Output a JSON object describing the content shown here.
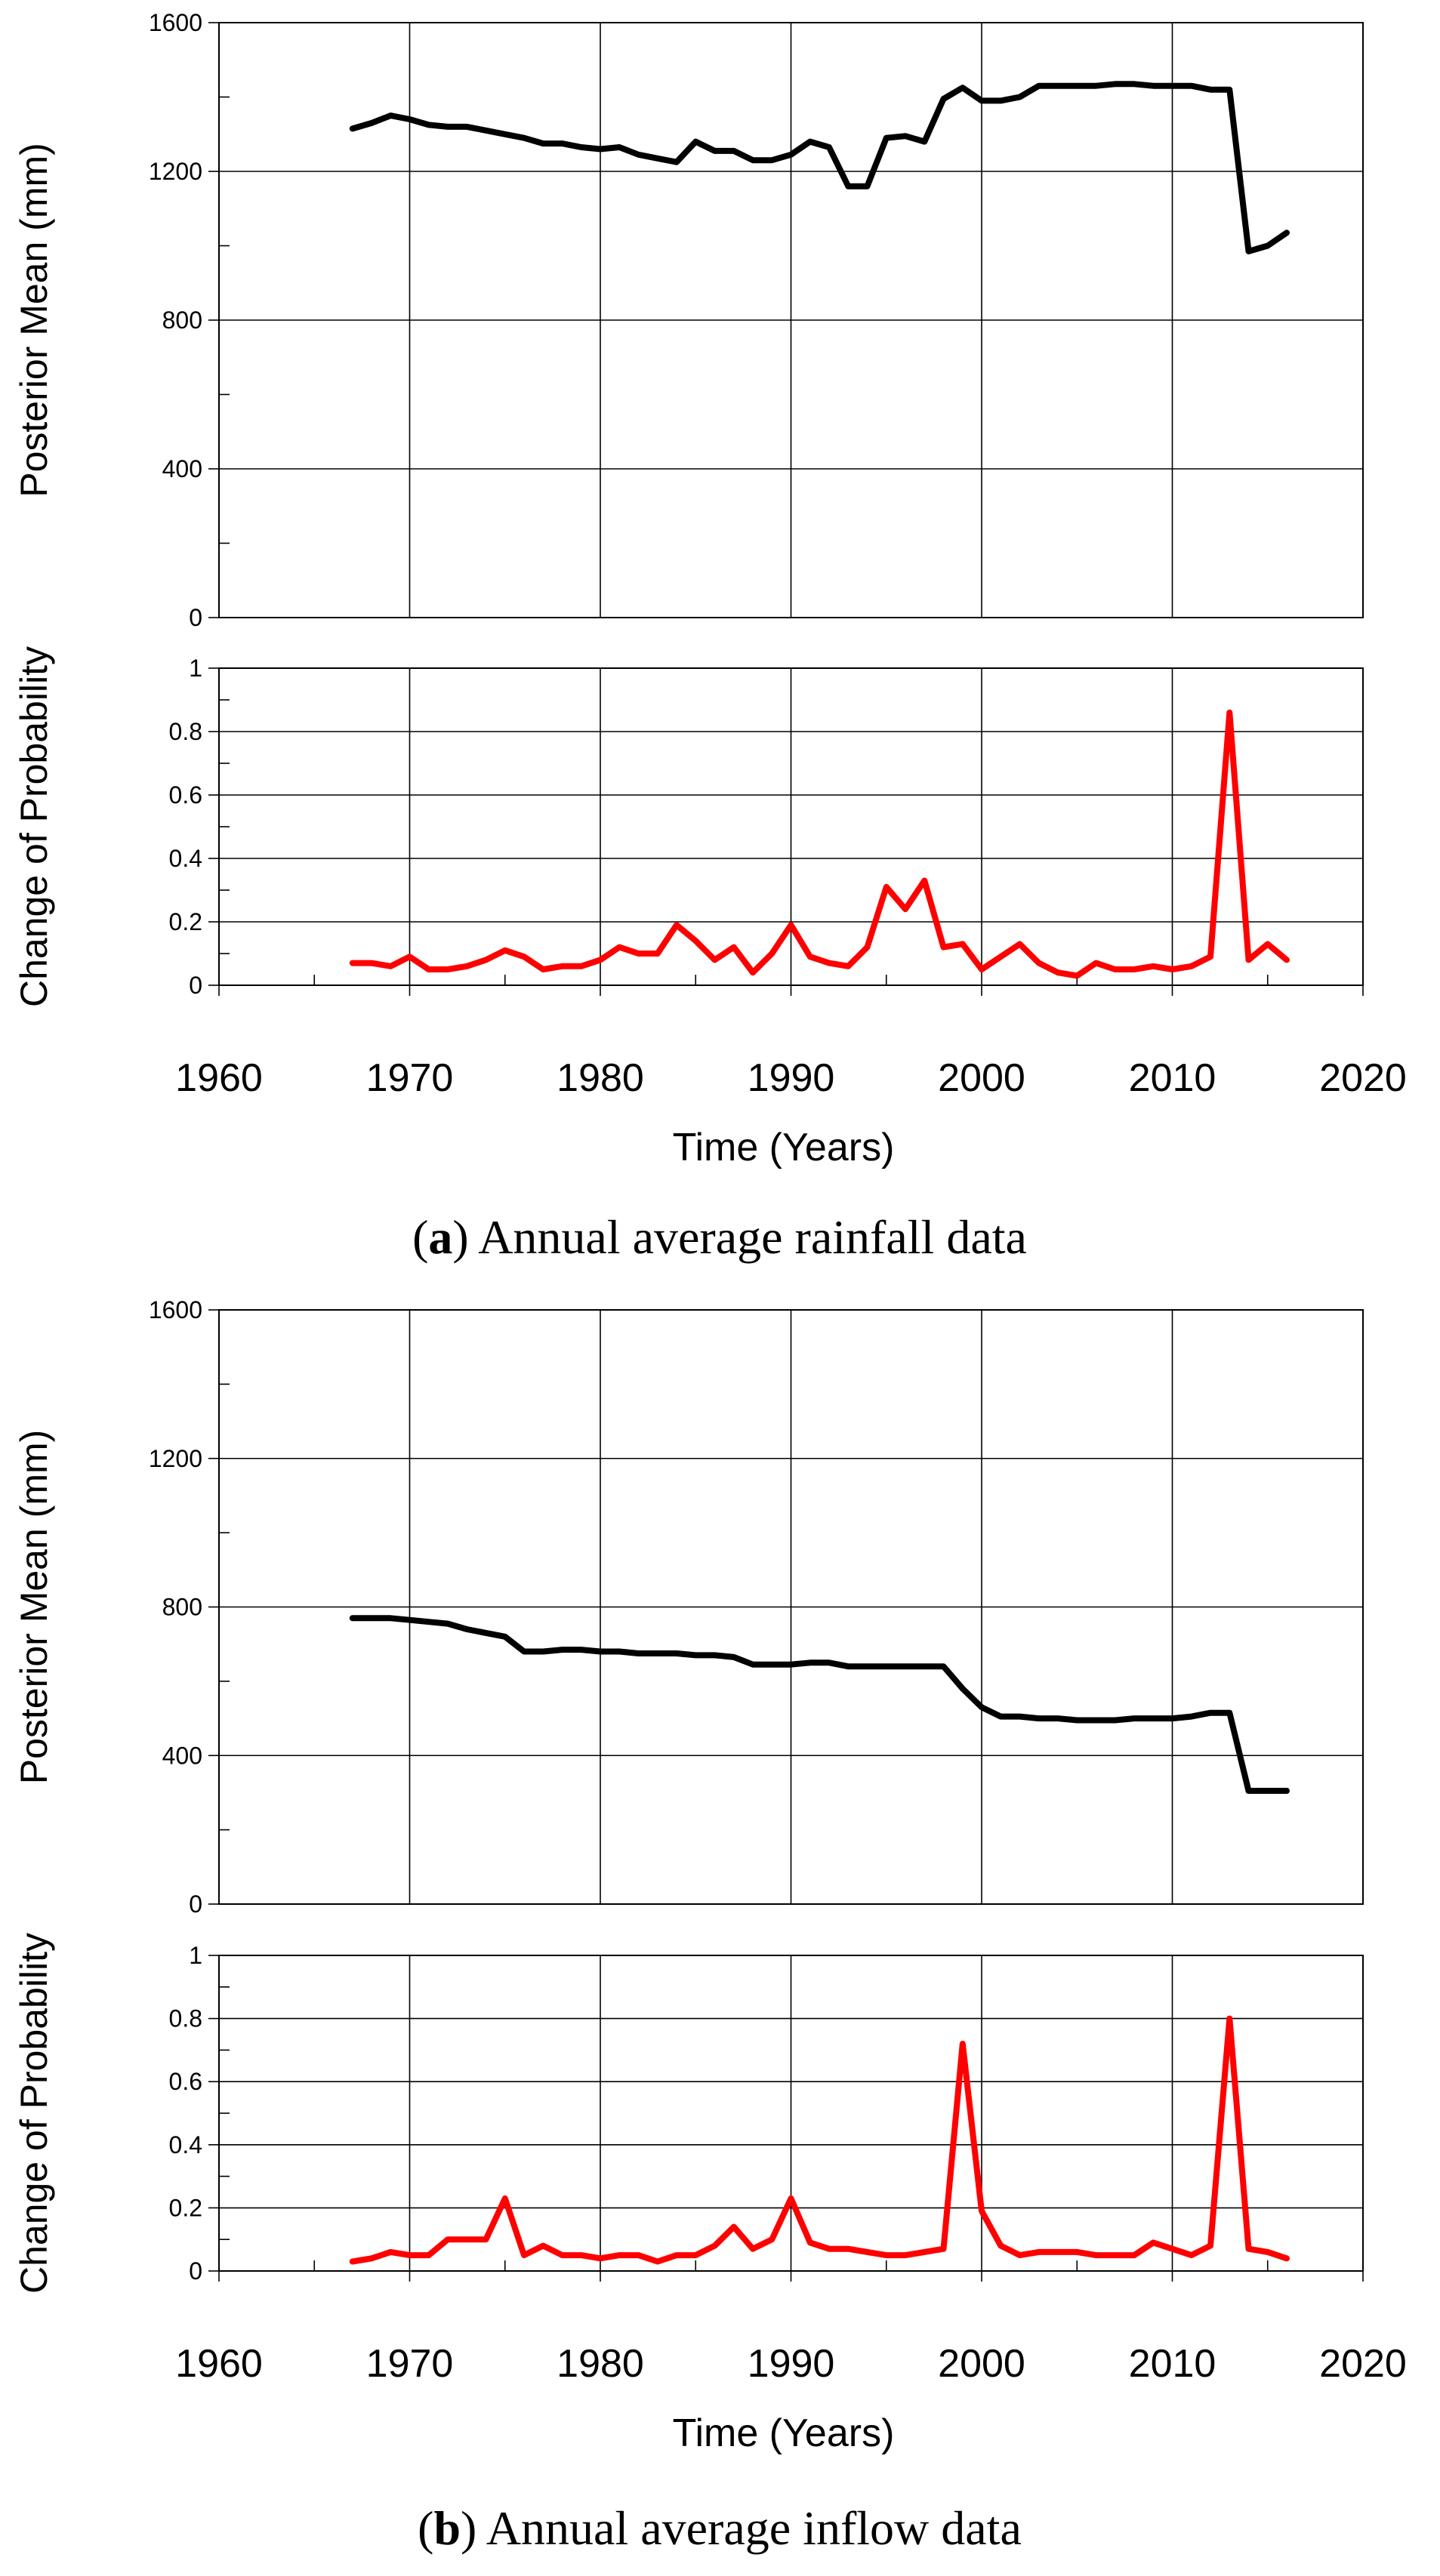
{
  "chart_data": [
    {
      "panel": "a",
      "caption_letter": "a",
      "caption_text": ") Annual average rainfall data",
      "xlabel": "Time (Years)",
      "x_ticks": [
        1960,
        1970,
        1980,
        1990,
        2000,
        2010,
        2020
      ],
      "xlim": [
        1960,
        2020
      ],
      "subplots": [
        {
          "type": "line",
          "ylabel": "Posterior Mean (mm)",
          "ylim": [
            0,
            1600
          ],
          "y_ticks": [
            0,
            400,
            800,
            1200,
            1600
          ],
          "color": "#000000",
          "x": [
            1967,
            1968,
            1969,
            1970,
            1971,
            1972,
            1973,
            1974,
            1975,
            1976,
            1977,
            1978,
            1979,
            1980,
            1981,
            1982,
            1983,
            1984,
            1985,
            1986,
            1987,
            1988,
            1989,
            1990,
            1991,
            1992,
            1993,
            1994,
            1995,
            1996,
            1997,
            1998,
            1999,
            2000,
            2001,
            2002,
            2003,
            2004,
            2005,
            2006,
            2007,
            2008,
            2009,
            2010,
            2011,
            2012,
            2013,
            2014,
            2015,
            2016
          ],
          "values": [
            1315,
            1330,
            1350,
            1340,
            1325,
            1320,
            1320,
            1310,
            1300,
            1290,
            1275,
            1275,
            1265,
            1260,
            1265,
            1245,
            1235,
            1225,
            1280,
            1255,
            1255,
            1230,
            1230,
            1245,
            1280,
            1265,
            1160,
            1160,
            1290,
            1295,
            1280,
            1395,
            1425,
            1390,
            1390,
            1400,
            1430,
            1430,
            1430,
            1430,
            1435,
            1435,
            1430,
            1430,
            1430,
            1420,
            1420,
            985,
            1000,
            1035
          ]
        },
        {
          "type": "line",
          "ylabel": "Change of Probability",
          "ylim": [
            0,
            1
          ],
          "y_ticks": [
            0,
            0.2,
            0.4,
            0.6,
            0.8,
            1
          ],
          "y_tick_labels": [
            "0",
            "0.2",
            "0.4",
            "0.6",
            "0.8",
            "1"
          ],
          "color": "#ff0000",
          "x": [
            1967,
            1968,
            1969,
            1970,
            1971,
            1972,
            1973,
            1974,
            1975,
            1976,
            1977,
            1978,
            1979,
            1980,
            1981,
            1982,
            1983,
            1984,
            1985,
            1986,
            1987,
            1988,
            1989,
            1990,
            1991,
            1992,
            1993,
            1994,
            1995,
            1996,
            1997,
            1998,
            1999,
            2000,
            2001,
            2002,
            2003,
            2004,
            2005,
            2006,
            2007,
            2008,
            2009,
            2010,
            2011,
            2012,
            2013,
            2014,
            2015,
            2016
          ],
          "values": [
            0.07,
            0.07,
            0.06,
            0.09,
            0.05,
            0.05,
            0.06,
            0.08,
            0.11,
            0.09,
            0.05,
            0.06,
            0.06,
            0.08,
            0.12,
            0.1,
            0.1,
            0.19,
            0.14,
            0.08,
            0.12,
            0.04,
            0.1,
            0.19,
            0.09,
            0.07,
            0.06,
            0.12,
            0.31,
            0.24,
            0.33,
            0.12,
            0.13,
            0.05,
            0.09,
            0.13,
            0.07,
            0.04,
            0.03,
            0.07,
            0.05,
            0.05,
            0.06,
            0.05,
            0.06,
            0.09,
            0.86,
            0.08,
            0.13,
            0.08
          ]
        }
      ]
    },
    {
      "panel": "b",
      "caption_letter": "b",
      "caption_text": ") Annual average inflow data",
      "xlabel": "Time (Years)",
      "x_ticks": [
        1960,
        1970,
        1980,
        1990,
        2000,
        2010,
        2020
      ],
      "xlim": [
        1960,
        2020
      ],
      "subplots": [
        {
          "type": "line",
          "ylabel": "Posterior Mean (mm)",
          "ylim": [
            0,
            1600
          ],
          "y_ticks": [
            0,
            400,
            800,
            1200,
            1600
          ],
          "color": "#000000",
          "x": [
            1967,
            1968,
            1969,
            1970,
            1971,
            1972,
            1973,
            1974,
            1975,
            1976,
            1977,
            1978,
            1979,
            1980,
            1981,
            1982,
            1983,
            1984,
            1985,
            1986,
            1987,
            1988,
            1989,
            1990,
            1991,
            1992,
            1993,
            1994,
            1995,
            1996,
            1997,
            1998,
            1999,
            2000,
            2001,
            2002,
            2003,
            2004,
            2005,
            2006,
            2007,
            2008,
            2009,
            2010,
            2011,
            2012,
            2013,
            2014,
            2015,
            2016
          ],
          "values": [
            770,
            770,
            770,
            765,
            760,
            755,
            740,
            730,
            720,
            680,
            680,
            685,
            685,
            680,
            680,
            675,
            675,
            675,
            670,
            670,
            665,
            645,
            645,
            645,
            650,
            650,
            640,
            640,
            640,
            640,
            640,
            640,
            580,
            530,
            505,
            505,
            500,
            500,
            495,
            495,
            495,
            500,
            500,
            500,
            505,
            515,
            515,
            305,
            305,
            305
          ]
        },
        {
          "type": "line",
          "ylabel": "Change of Probability",
          "ylim": [
            0,
            1
          ],
          "y_ticks": [
            0,
            0.2,
            0.4,
            0.6,
            0.8,
            1
          ],
          "y_tick_labels": [
            "0",
            "0.2",
            "0.4",
            "0.6",
            "0.8",
            "1"
          ],
          "color": "#ff0000",
          "x": [
            1967,
            1968,
            1969,
            1970,
            1971,
            1972,
            1973,
            1974,
            1975,
            1976,
            1977,
            1978,
            1979,
            1980,
            1981,
            1982,
            1983,
            1984,
            1985,
            1986,
            1987,
            1988,
            1989,
            1990,
            1991,
            1992,
            1993,
            1994,
            1995,
            1996,
            1997,
            1998,
            1999,
            2000,
            2001,
            2002,
            2003,
            2004,
            2005,
            2006,
            2007,
            2008,
            2009,
            2010,
            2011,
            2012,
            2013,
            2014,
            2015,
            2016
          ],
          "values": [
            0.03,
            0.04,
            0.06,
            0.05,
            0.05,
            0.1,
            0.1,
            0.1,
            0.23,
            0.05,
            0.08,
            0.05,
            0.05,
            0.04,
            0.05,
            0.05,
            0.03,
            0.05,
            0.05,
            0.08,
            0.14,
            0.07,
            0.1,
            0.23,
            0.09,
            0.07,
            0.07,
            0.06,
            0.05,
            0.05,
            0.06,
            0.07,
            0.72,
            0.19,
            0.08,
            0.05,
            0.06,
            0.06,
            0.06,
            0.05,
            0.05,
            0.05,
            0.09,
            0.07,
            0.05,
            0.08,
            0.8,
            0.07,
            0.06,
            0.04
          ]
        }
      ]
    }
  ]
}
